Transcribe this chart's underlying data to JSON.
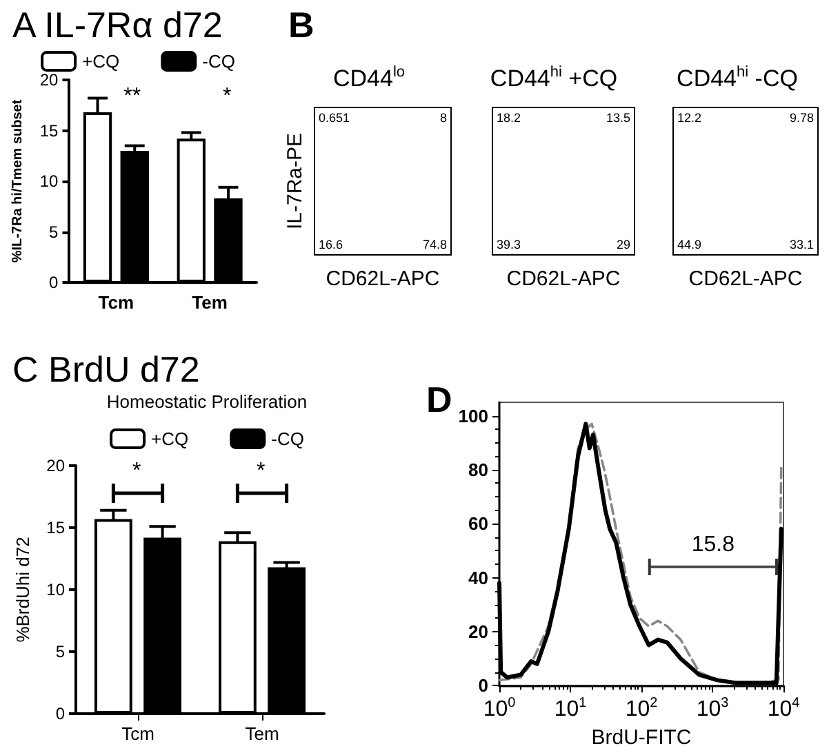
{
  "chart_data": [
    {
      "type": "bar",
      "title": "A IL-7Rα d72",
      "ylabel": "%IL-7Ra hi/Tmem subset",
      "categories": [
        "Tcm",
        "Tem"
      ],
      "legend": "top",
      "ylim": [
        0,
        20
      ],
      "yticks": [
        0,
        5,
        10,
        15,
        20
      ],
      "annotations": [
        "**",
        "*"
      ],
      "series": [
        {
          "name": "+CQ",
          "color": "#ffffff",
          "values": [
            16.8,
            14.2
          ],
          "errors": [
            1.4,
            0.6
          ]
        },
        {
          "name": "-CQ",
          "color": "#000000",
          "values": [
            13.0,
            8.3
          ],
          "errors": [
            0.5,
            1.1
          ]
        }
      ]
    },
    {
      "type": "other",
      "title": "B",
      "subtitle": "CD44$^{lo}$",
      "xlabel": "CD62L-APC",
      "ylabel": "IL-7Ra-PE",
      "annotations": [
        "0.651",
        "8",
        "16.6",
        "74.8"
      ]
    },
    {
      "type": "other",
      "subtitle": "CD44$^{hi}$ +CQ",
      "xlabel": "CD62L-APC",
      "annotations": [
        "18.2",
        "13.5",
        "39.3",
        "29"
      ]
    },
    {
      "type": "other",
      "subtitle": "CD44$^{hi}$ -CQ",
      "xlabel": "CD62L-APC",
      "annotations": [
        "12.2",
        "9.78",
        "44.9",
        "33.1"
      ]
    },
    {
      "type": "bar",
      "title": "C BrdU d72",
      "subtitle": "Homeostatic Proliferation",
      "ylabel": "%BrdUhi d72",
      "categories": [
        "Tcm",
        "Tem"
      ],
      "legend": "top",
      "ylim": [
        0,
        20
      ],
      "yticks": [
        0,
        5,
        10,
        15,
        20
      ],
      "annotations": [
        "*",
        "*"
      ],
      "series": [
        {
          "name": "+CQ",
          "color": "#ffffff",
          "values": [
            15.7,
            13.9
          ],
          "errors": [
            0.7,
            0.7
          ]
        },
        {
          "name": "-CQ",
          "color": "#000000",
          "values": [
            14.2,
            11.8
          ],
          "errors": [
            0.9,
            0.4
          ]
        }
      ]
    },
    {
      "type": "line",
      "title": "D",
      "xlabel": "BrdU-FITC",
      "log": "x",
      "marker": "none",
      "xlim": [
        1,
        10000
      ],
      "xticks": [
        {
          "value": 1,
          "label": "10$^{0}$"
        },
        {
          "value": 10,
          "label": "10$^{1}$"
        },
        {
          "value": 100,
          "label": "10$^{2}$"
        },
        {
          "value": 1000,
          "label": "10$^{3}$"
        },
        {
          "value": 10000,
          "label": "10$^{4}$"
        }
      ],
      "ylim": [
        0,
        105
      ],
      "yticks": [
        0,
        20,
        40,
        60,
        80,
        100
      ],
      "annotations": [
        "15.8"
      ],
      "series": [
        {
          "color": "#000000",
          "line_style": "solid",
          "x": [
            1,
            1.05,
            1.29,
            2,
            2.8,
            3.4,
            4.9,
            6.6,
            9.5,
            12.8,
            16.5,
            18.6,
            20.9,
            25,
            31,
            36,
            44,
            56,
            70,
            94,
            127,
            171,
            230,
            357,
            650,
            1170,
            2100,
            5100,
            7950,
            9300
          ],
          "values": [
            38,
            5,
            3,
            4,
            9,
            8,
            20,
            35,
            58,
            85,
            97,
            88,
            93,
            80,
            65,
            58,
            53,
            40,
            30,
            22,
            15,
            17,
            16,
            10,
            4,
            2,
            1,
            1,
            1,
            58
          ]
        },
        {
          "color": "#888888",
          "line_style": "dashed",
          "x": [
            1,
            2,
            2.8,
            4.9,
            6.6,
            9.5,
            12.8,
            16.5,
            20,
            25,
            30,
            36,
            44,
            56,
            70,
            94,
            127,
            171,
            230,
            357,
            650,
            1170,
            2100,
            5100,
            8500,
            9300
          ],
          "values": [
            2,
            3,
            8,
            22,
            36,
            60,
            88,
            95,
            97,
            88,
            80,
            70,
            58,
            45,
            33,
            25,
            22,
            24,
            22,
            17,
            5,
            2,
            1,
            1,
            2,
            82
          ]
        },
        {
          "color": "#444444",
          "line_style": "solid",
          "x": [
            130,
            8000
          ],
          "values": [
            44,
            44
          ]
        }
      ]
    }
  ]
}
